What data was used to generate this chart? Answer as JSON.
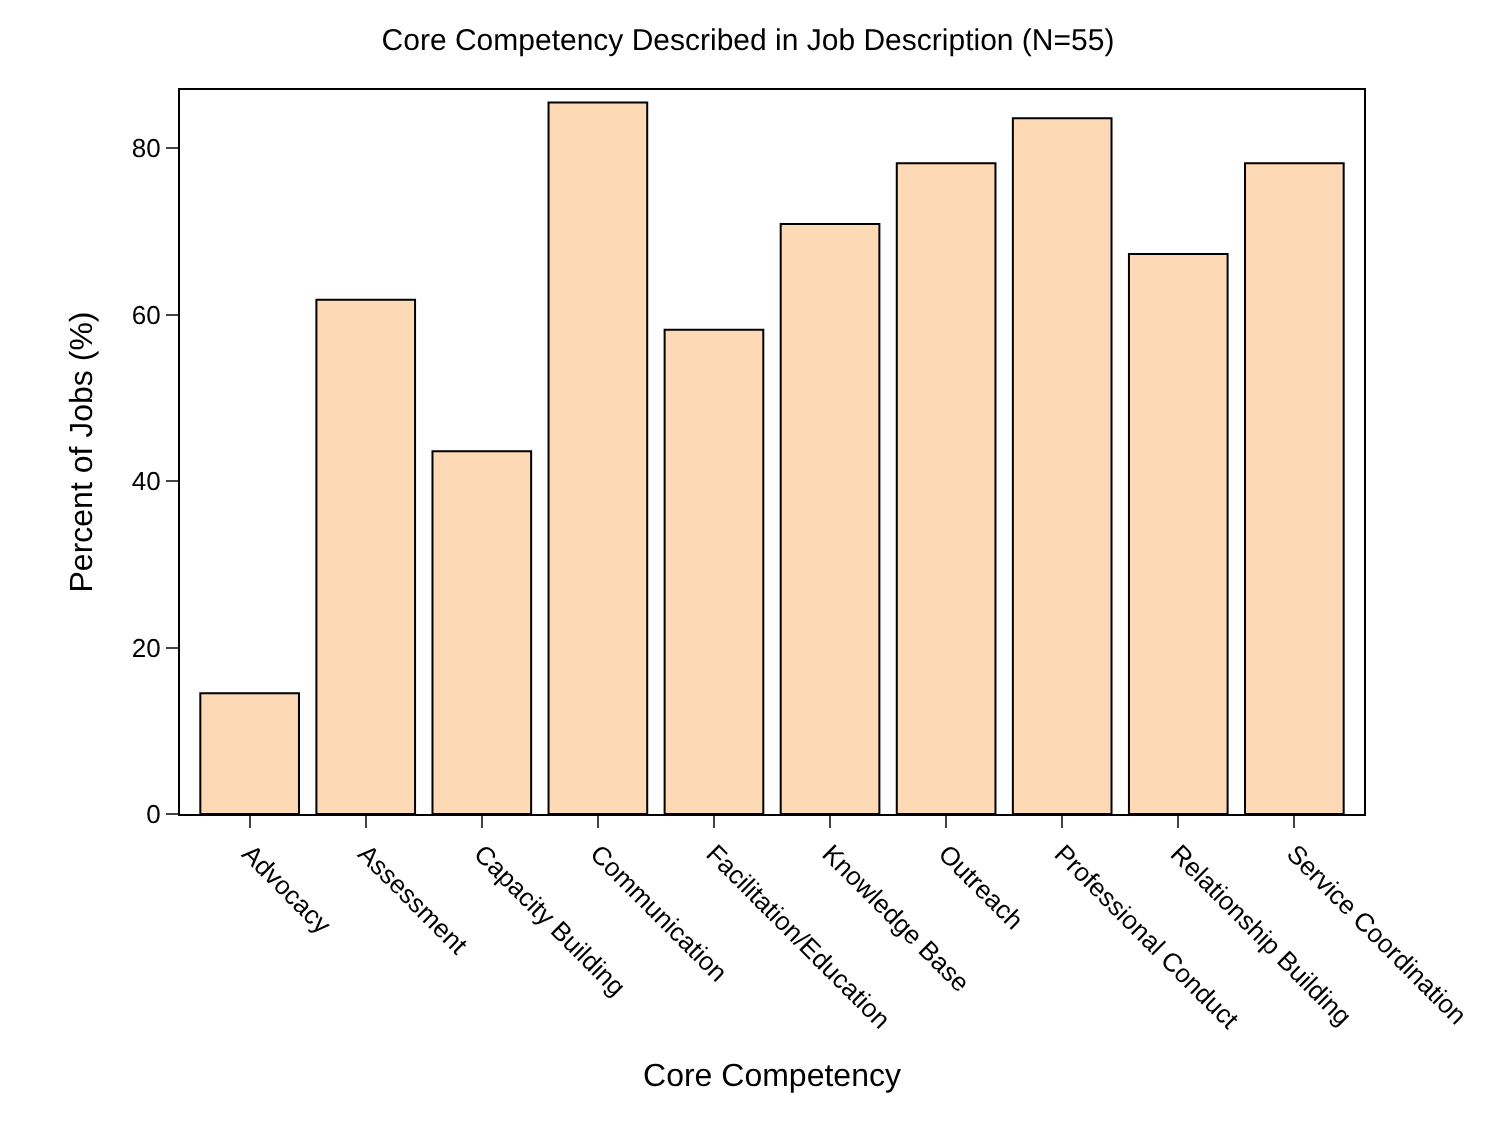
{
  "chart_data": {
    "type": "bar",
    "title": "Core Competency Described in Job Description (N=55)",
    "xlabel": "Core Competency",
    "ylabel": "Percent of Jobs (%)",
    "categories": [
      "Advocacy",
      "Assessment",
      "Capacity Building",
      "Communication",
      "Facilitation/Education",
      "Knowledge Base",
      "Outreach",
      "Professional Conduct",
      "Relationship Building",
      "Service Coordination"
    ],
    "values": [
      14.5,
      61.8,
      43.6,
      85.5,
      58.2,
      70.9,
      78.2,
      83.6,
      67.3,
      78.2
    ],
    "color": "#fdd9b5",
    "ylim": [
      0,
      87
    ],
    "yticks": [
      0,
      20,
      40,
      60,
      80
    ]
  }
}
